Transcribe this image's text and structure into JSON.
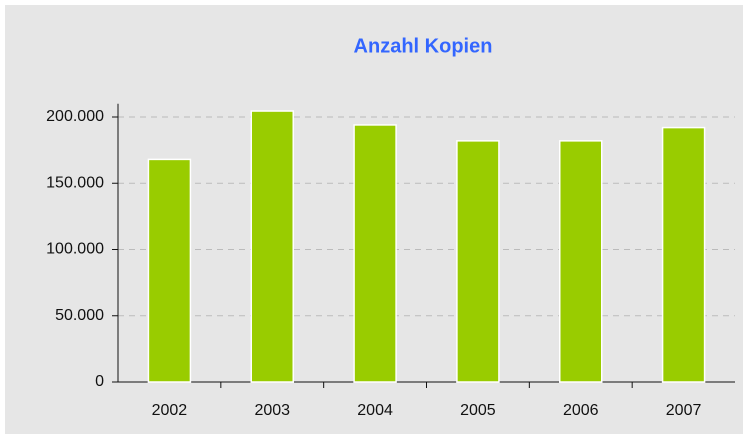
{
  "chart_data": {
    "type": "bar",
    "title": "Anzahl Kopien",
    "categories": [
      "2002",
      "2003",
      "2004",
      "2005",
      "2006",
      "2007"
    ],
    "values": [
      168000,
      204500,
      194000,
      182000,
      182000,
      192000
    ],
    "color": "#99cc00",
    "ylim": [
      0,
      210000
    ],
    "yticks": [
      0,
      {
        "value": 50000,
        "label": "50.000"
      },
      {
        "value": 100000,
        "label": "100.000"
      },
      {
        "value": 150000,
        "label": "150.000"
      },
      {
        "value": 200000,
        "label": "200.000"
      }
    ],
    "grid": true
  }
}
